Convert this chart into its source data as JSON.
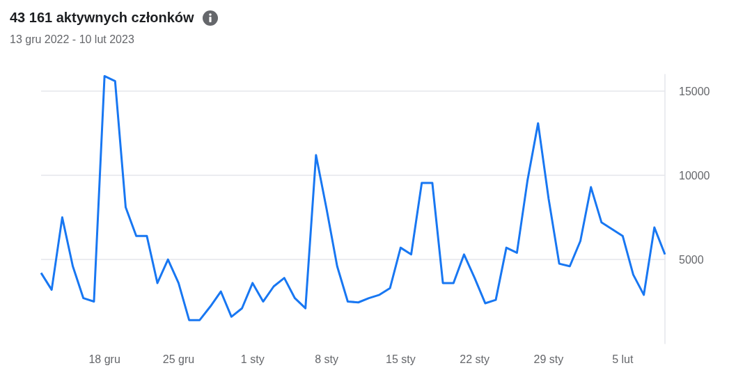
{
  "chart_data": {
    "type": "line",
    "title": "43 161 aktywnych członków",
    "subtitle": "13 gru 2022 - 10 lut 2023",
    "categories": [
      null,
      null,
      null,
      null,
      null,
      null,
      "18 gru",
      null,
      null,
      null,
      null,
      null,
      null,
      "25 gru",
      null,
      null,
      null,
      null,
      null,
      null,
      "1 sty",
      null,
      null,
      null,
      null,
      null,
      null,
      "8 sty",
      null,
      null,
      null,
      null,
      null,
      null,
      "15 sty",
      null,
      null,
      null,
      null,
      null,
      null,
      "22 sty",
      null,
      null,
      null,
      null,
      null,
      null,
      "29 sty",
      null,
      null,
      null,
      null,
      null,
      null,
      "5 lut",
      null,
      null,
      null,
      null
    ],
    "values": [
      4200,
      3200,
      7500,
      4600,
      2700,
      2500,
      15900,
      15600,
      8100,
      6400,
      6400,
      3600,
      5000,
      3600,
      1400,
      1400,
      2200,
      3100,
      1600,
      2100,
      3600,
      2500,
      3400,
      3900,
      2700,
      2100,
      11200,
      8000,
      4600,
      2500,
      2450,
      2700,
      2900,
      3300,
      5700,
      5300,
      9550,
      9550,
      3600,
      3600,
      5300,
      3900,
      2400,
      2600,
      5700,
      5400,
      9700,
      13100,
      8600,
      4750,
      4600,
      6100,
      9300,
      7200,
      6800,
      6400,
      4100,
      2900,
      6900,
      5300
    ],
    "color": "#1877f2",
    "ylim": [
      0,
      16000
    ],
    "yticks": [
      5000,
      10000,
      15000
    ],
    "grid": "y",
    "marker": "none"
  }
}
